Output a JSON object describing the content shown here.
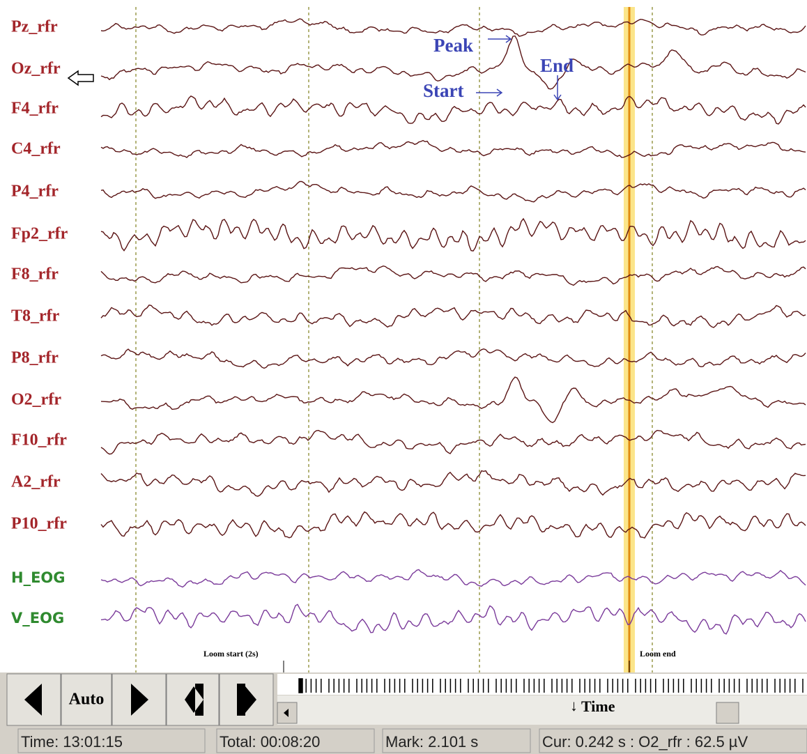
{
  "eeg_channels": [
    "Pz_rfr",
    "Oz_rfr",
    "F4_rfr",
    "C4_rfr",
    "P4_rfr",
    "Fp2_rfr",
    "F8_rfr",
    "T8_rfr",
    "P8_rfr",
    "O2_rfr",
    "F10_rfr",
    "A2_rfr",
    "P10_rfr"
  ],
  "eog_channels": [
    "H_EOG",
    "V_EOG"
  ],
  "annotations": {
    "peak": "Peak",
    "start": "Start",
    "end": "End",
    "loom_start": "Loom start (2s)",
    "loom_end": "Loom end"
  },
  "toolbar": {
    "auto": "Auto",
    "scroll_label": "Time"
  },
  "status": [
    "Time: 13:01:15",
    "Total: 00:08:20",
    "Mark: 2.101 s",
    "Cur: 0.242 s : O2_rfr : 62.5 µV"
  ]
}
